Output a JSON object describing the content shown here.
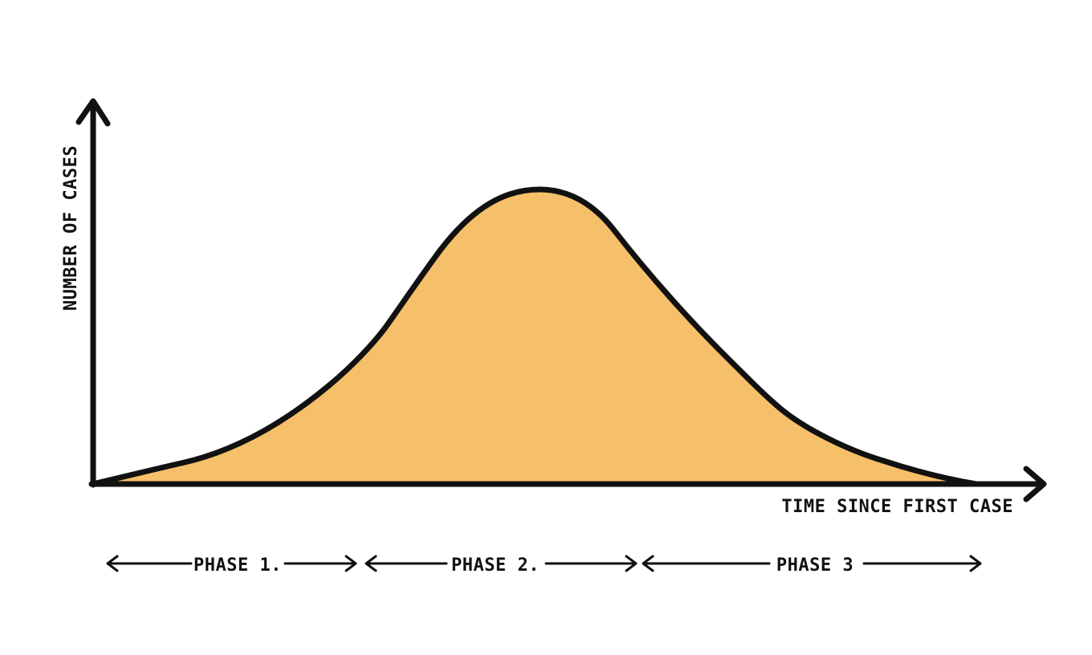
{
  "diagram": {
    "y_axis_label": "NUMBER OF CASES",
    "x_axis_label": "TIME SINCE FIRST CASE",
    "phases": [
      {
        "label": "PHASE 1."
      },
      {
        "label": "PHASE 2."
      },
      {
        "label": "PHASE 3"
      }
    ]
  },
  "colors": {
    "curve_fill": "#F6BF69",
    "stroke": "#111111",
    "background": "#FFFFFF"
  }
}
